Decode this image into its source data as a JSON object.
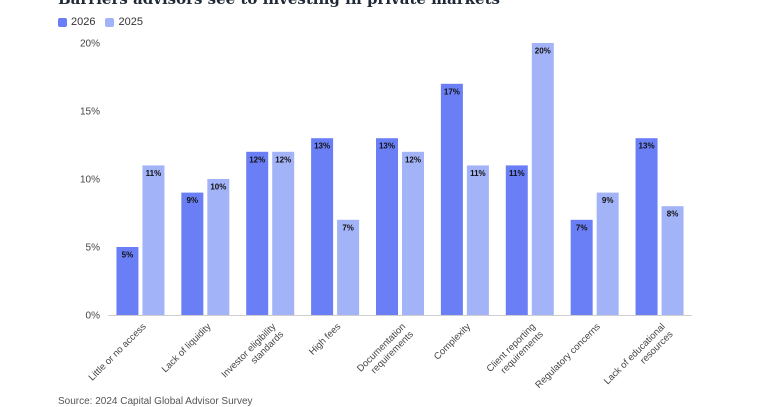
{
  "chart_data": {
    "type": "bar",
    "title": "Barriers advisors see to investing in private markets",
    "categories": [
      [
        "Little or no access"
      ],
      [
        "Lack of liquidity"
      ],
      [
        "Investor eligibility",
        "standards"
      ],
      [
        "High fees"
      ],
      [
        "Documentation",
        "requirements"
      ],
      [
        "Complexity"
      ],
      [
        "Client reporting",
        "requirements"
      ],
      [
        "Regulatory concerns"
      ],
      [
        "Lack of educational",
        "resources"
      ]
    ],
    "series": [
      {
        "name": "2026",
        "color": "#6a7ff5",
        "values": [
          5,
          9,
          12,
          13,
          13,
          17,
          11,
          7,
          13
        ]
      },
      {
        "name": "2025",
        "color": "#a3b3f7",
        "values": [
          11,
          10,
          12,
          7,
          12,
          11,
          20,
          9,
          8
        ]
      }
    ],
    "y_ticks": [
      "0%",
      "5%",
      "10%",
      "15%",
      "20%"
    ],
    "ylim": [
      0,
      20
    ],
    "value_suffix": "%",
    "grid": false,
    "legend_position": "top-left"
  },
  "source": "Source: 2024 Capital Global Advisor Survey"
}
